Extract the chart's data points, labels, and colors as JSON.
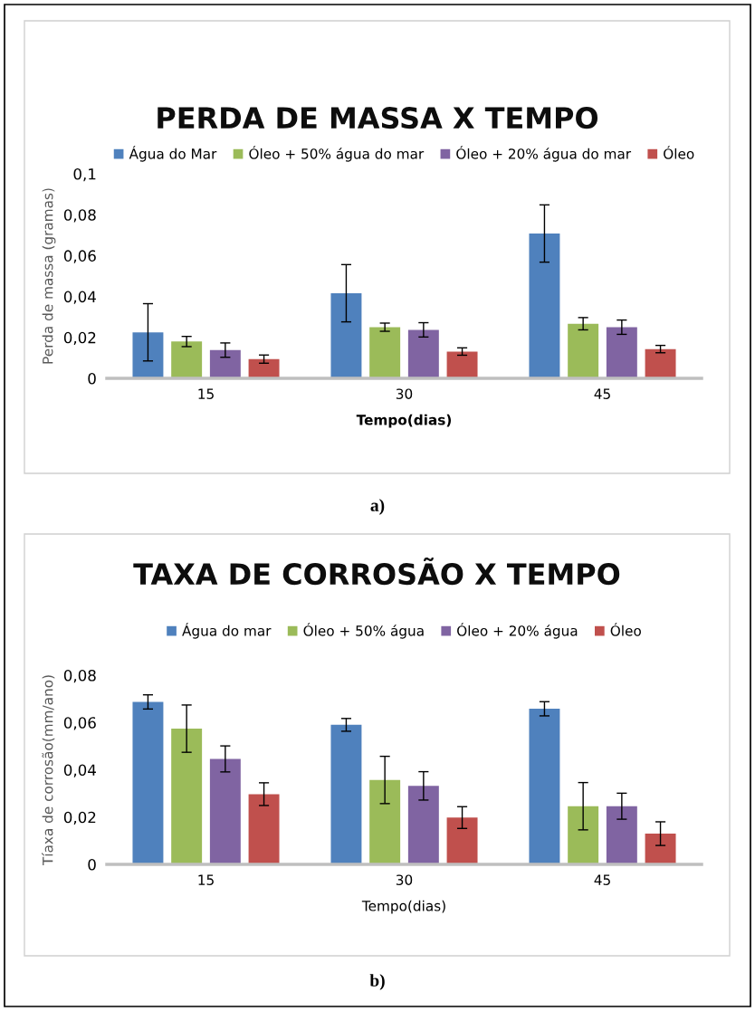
{
  "chart_data": [
    {
      "type": "bar",
      "title": "PERDA DE MASSA X TEMPO",
      "xlabel": "Tempo(dias)",
      "ylabel": "Perda de massa (gramas)",
      "categories": [
        "15",
        "30",
        "45"
      ],
      "series": [
        {
          "name": "Água do Mar",
          "color": "#4f81bd",
          "values": [
            0.0225,
            0.0416,
            0.0708
          ],
          "errors": [
            0.014,
            0.014,
            0.014
          ]
        },
        {
          "name": "Óleo + 50% água do mar",
          "color": "#9bbb59",
          "values": [
            0.018,
            0.025,
            0.0267
          ],
          "errors": [
            0.0025,
            0.002,
            0.003
          ]
        },
        {
          "name": "Óleo + 20% água do mar",
          "color": "#8064a2",
          "values": [
            0.0138,
            0.0237,
            0.025
          ],
          "errors": [
            0.0035,
            0.0035,
            0.0035
          ]
        },
        {
          "name": "Óleo",
          "color": "#c0504d",
          "values": [
            0.0094,
            0.0131,
            0.0143
          ],
          "errors": [
            0.002,
            0.0018,
            0.0018
          ]
        }
      ],
      "ylim": [
        0,
        0.1
      ],
      "yticks": [
        {
          "value": 0,
          "label": "0"
        },
        {
          "value": 0.02,
          "label": "0,02"
        },
        {
          "value": 0.04,
          "label": "0,04"
        },
        {
          "value": 0.06,
          "label": "0,06"
        },
        {
          "value": 0.08,
          "label": "0,08"
        },
        {
          "value": 0.1,
          "label": "0,1"
        }
      ],
      "grid": false,
      "legend": "top",
      "annotations": [
        "a)"
      ]
    },
    {
      "type": "bar",
      "title": "TAXA DE CORROSÃO X TEMPO",
      "xlabel": "Tempo(dias)",
      "ylabel": "Tíaxa de corrosão(mm/ano)",
      "categories": [
        "15",
        "30",
        "45"
      ],
      "series": [
        {
          "name": "Água do mar",
          "color": "#4f81bd",
          "values": [
            0.0687,
            0.059,
            0.0658
          ],
          "errors": [
            0.003,
            0.0027,
            0.003
          ]
        },
        {
          "name": "Óleo + 50% água",
          "color": "#9bbb59",
          "values": [
            0.0574,
            0.0357,
            0.0246
          ],
          "errors": [
            0.01,
            0.01,
            0.01
          ]
        },
        {
          "name": "Óleo + 20% água",
          "color": "#8064a2",
          "values": [
            0.0446,
            0.0332,
            0.0246
          ],
          "errors": [
            0.0055,
            0.006,
            0.0055
          ]
        },
        {
          "name": "Óleo",
          "color": "#c0504d",
          "values": [
            0.0297,
            0.0198,
            0.013
          ],
          "errors": [
            0.0048,
            0.0046,
            0.005
          ]
        }
      ],
      "ylim": [
        0,
        0.08
      ],
      "yticks": [
        {
          "value": 0,
          "label": "0"
        },
        {
          "value": 0.02,
          "label": "0,02"
        },
        {
          "value": 0.04,
          "label": "0,04"
        },
        {
          "value": 0.06,
          "label": "0,06"
        },
        {
          "value": 0.08,
          "label": "0,08"
        }
      ],
      "grid": false,
      "legend": "top",
      "annotations": [
        "b)"
      ]
    }
  ]
}
